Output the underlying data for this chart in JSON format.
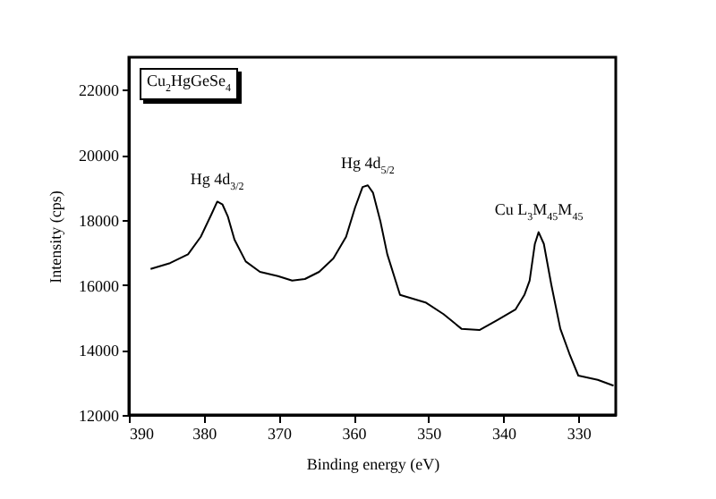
{
  "chart_data": {
    "type": "line",
    "xlabel": "Binding energy (eV)",
    "ylabel": "Intensity (cps)",
    "xlim": [
      390,
      325
    ],
    "xticks": [
      390,
      380,
      370,
      360,
      350,
      340,
      330
    ],
    "ylim": [
      12000,
      23000
    ],
    "yticks": [
      12000,
      14000,
      16000,
      18000,
      20000,
      22000
    ],
    "grid": false,
    "annotations": [
      "Cu$_{2}$HgGeSe$_{4}$",
      {
        "text": "Hg 4d$_{3/2}$",
        "x": 378.2,
        "y": 18560
      },
      {
        "text": "Hg 4d$_{5/2}$",
        "x": 358.1,
        "y": 19060
      },
      {
        "text": "Cu L$_{3}$M$_{45}$M$_{45}$",
        "x": 335.3,
        "y": 17620
      }
    ],
    "series": [
      {
        "color": "#000000",
        "line_style": "solid",
        "x": [
          387.1,
          384.5,
          382.1,
          380.4,
          379.0,
          378.2,
          377.5,
          376.8,
          375.9,
          374.4,
          372.5,
          370.1,
          368.2,
          366.5,
          364.6,
          362.7,
          361.0,
          359.8,
          358.8,
          358.1,
          357.4,
          356.4,
          355.5,
          353.8,
          350.4,
          348.0,
          345.6,
          343.2,
          340.8,
          338.4,
          337.2,
          336.5,
          335.8,
          335.3,
          334.6,
          333.6,
          332.4,
          331.2,
          330.0,
          327.4,
          325.3
        ],
        "values": [
          16490,
          16670,
          16940,
          17480,
          18160,
          18560,
          18470,
          18110,
          17390,
          16720,
          16400,
          16270,
          16130,
          16180,
          16400,
          16810,
          17480,
          18380,
          19010,
          19060,
          18830,
          17930,
          16940,
          15690,
          15460,
          15100,
          14650,
          14610,
          14920,
          15240,
          15690,
          16130,
          17260,
          17620,
          17260,
          16000,
          14650,
          13890,
          13210,
          13080,
          12900
        ]
      }
    ]
  }
}
